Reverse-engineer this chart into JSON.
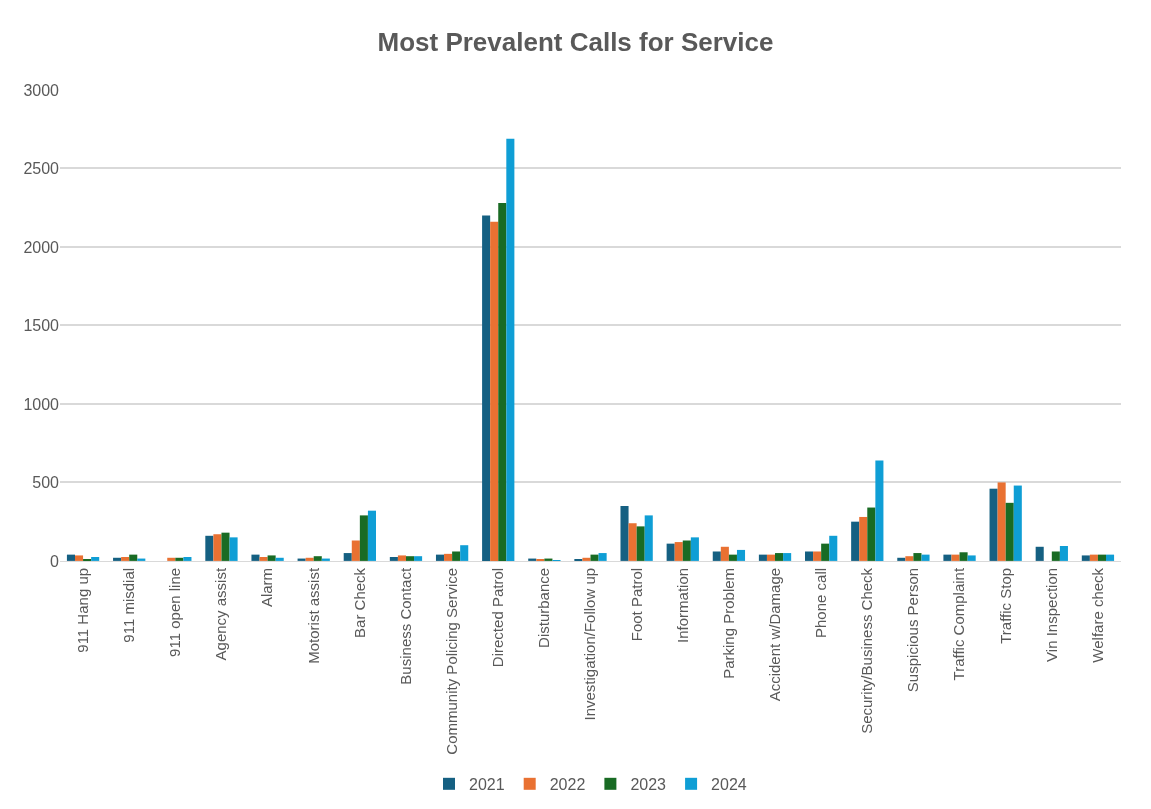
{
  "chart_data": {
    "type": "bar",
    "title": "Most Prevalent Calls for Service",
    "categories": [
      "911 Hang up",
      "911 misdial",
      "911 open line",
      "Agency assist",
      "Alarm",
      "Motorist assist",
      "Bar Check",
      "Business Contact",
      "Community Policing Service",
      "Directed Patrol",
      "Disturbance",
      "Investigation/Follow up",
      "Foot Patrol",
      "Information",
      "Parking Problem",
      "Accident w/Damage",
      "Phone call",
      "Security/Business Check",
      "Suspicious Person",
      "Traffic Complaint",
      "Traffic Stop",
      "Vin Inspection",
      "Welfare check"
    ],
    "series": [
      {
        "name": "2021",
        "color": "#156082",
        "values": [
          40,
          20,
          null,
          160,
          40,
          15,
          50,
          25,
          40,
          2200,
          15,
          10,
          350,
          110,
          60,
          40,
          60,
          250,
          20,
          40,
          460,
          90,
          35
        ]
      },
      {
        "name": "2022",
        "color": "#e97132",
        "values": [
          35,
          25,
          20,
          170,
          25,
          20,
          130,
          35,
          45,
          2160,
          10,
          20,
          240,
          120,
          90,
          40,
          60,
          280,
          30,
          40,
          500,
          null,
          40
        ]
      },
      {
        "name": "2023",
        "color": "#196b24",
        "values": [
          10,
          40,
          20,
          180,
          35,
          30,
          290,
          30,
          60,
          2280,
          15,
          40,
          220,
          130,
          40,
          50,
          110,
          340,
          50,
          55,
          370,
          60,
          40
        ]
      },
      {
        "name": "2024",
        "color": "#0f9ed5",
        "values": [
          25,
          15,
          25,
          150,
          20,
          15,
          320,
          30,
          100,
          2690,
          5,
          50,
          290,
          150,
          70,
          50,
          160,
          640,
          40,
          35,
          480,
          95,
          40
        ]
      }
    ],
    "ylim": [
      0,
      3000
    ],
    "yticks": [
      0,
      500,
      1000,
      1500,
      2000,
      2500,
      3000
    ],
    "grid": "y",
    "legend": "bottom"
  }
}
